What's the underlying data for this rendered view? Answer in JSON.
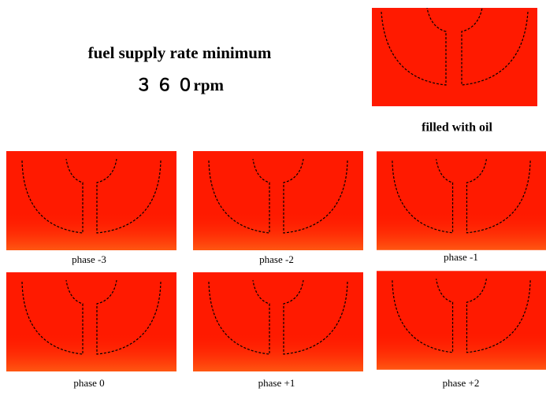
{
  "header": {
    "title": "fuel supply rate minimum",
    "speed": "３ ６ ０rpm"
  },
  "reference": {
    "caption": "filled with oil"
  },
  "panels": [
    {
      "label": "phase -3"
    },
    {
      "label": "phase -2"
    },
    {
      "label": "phase -1"
    },
    {
      "label": "phase 0"
    },
    {
      "label": "phase +1"
    },
    {
      "label": "phase +2"
    }
  ]
}
